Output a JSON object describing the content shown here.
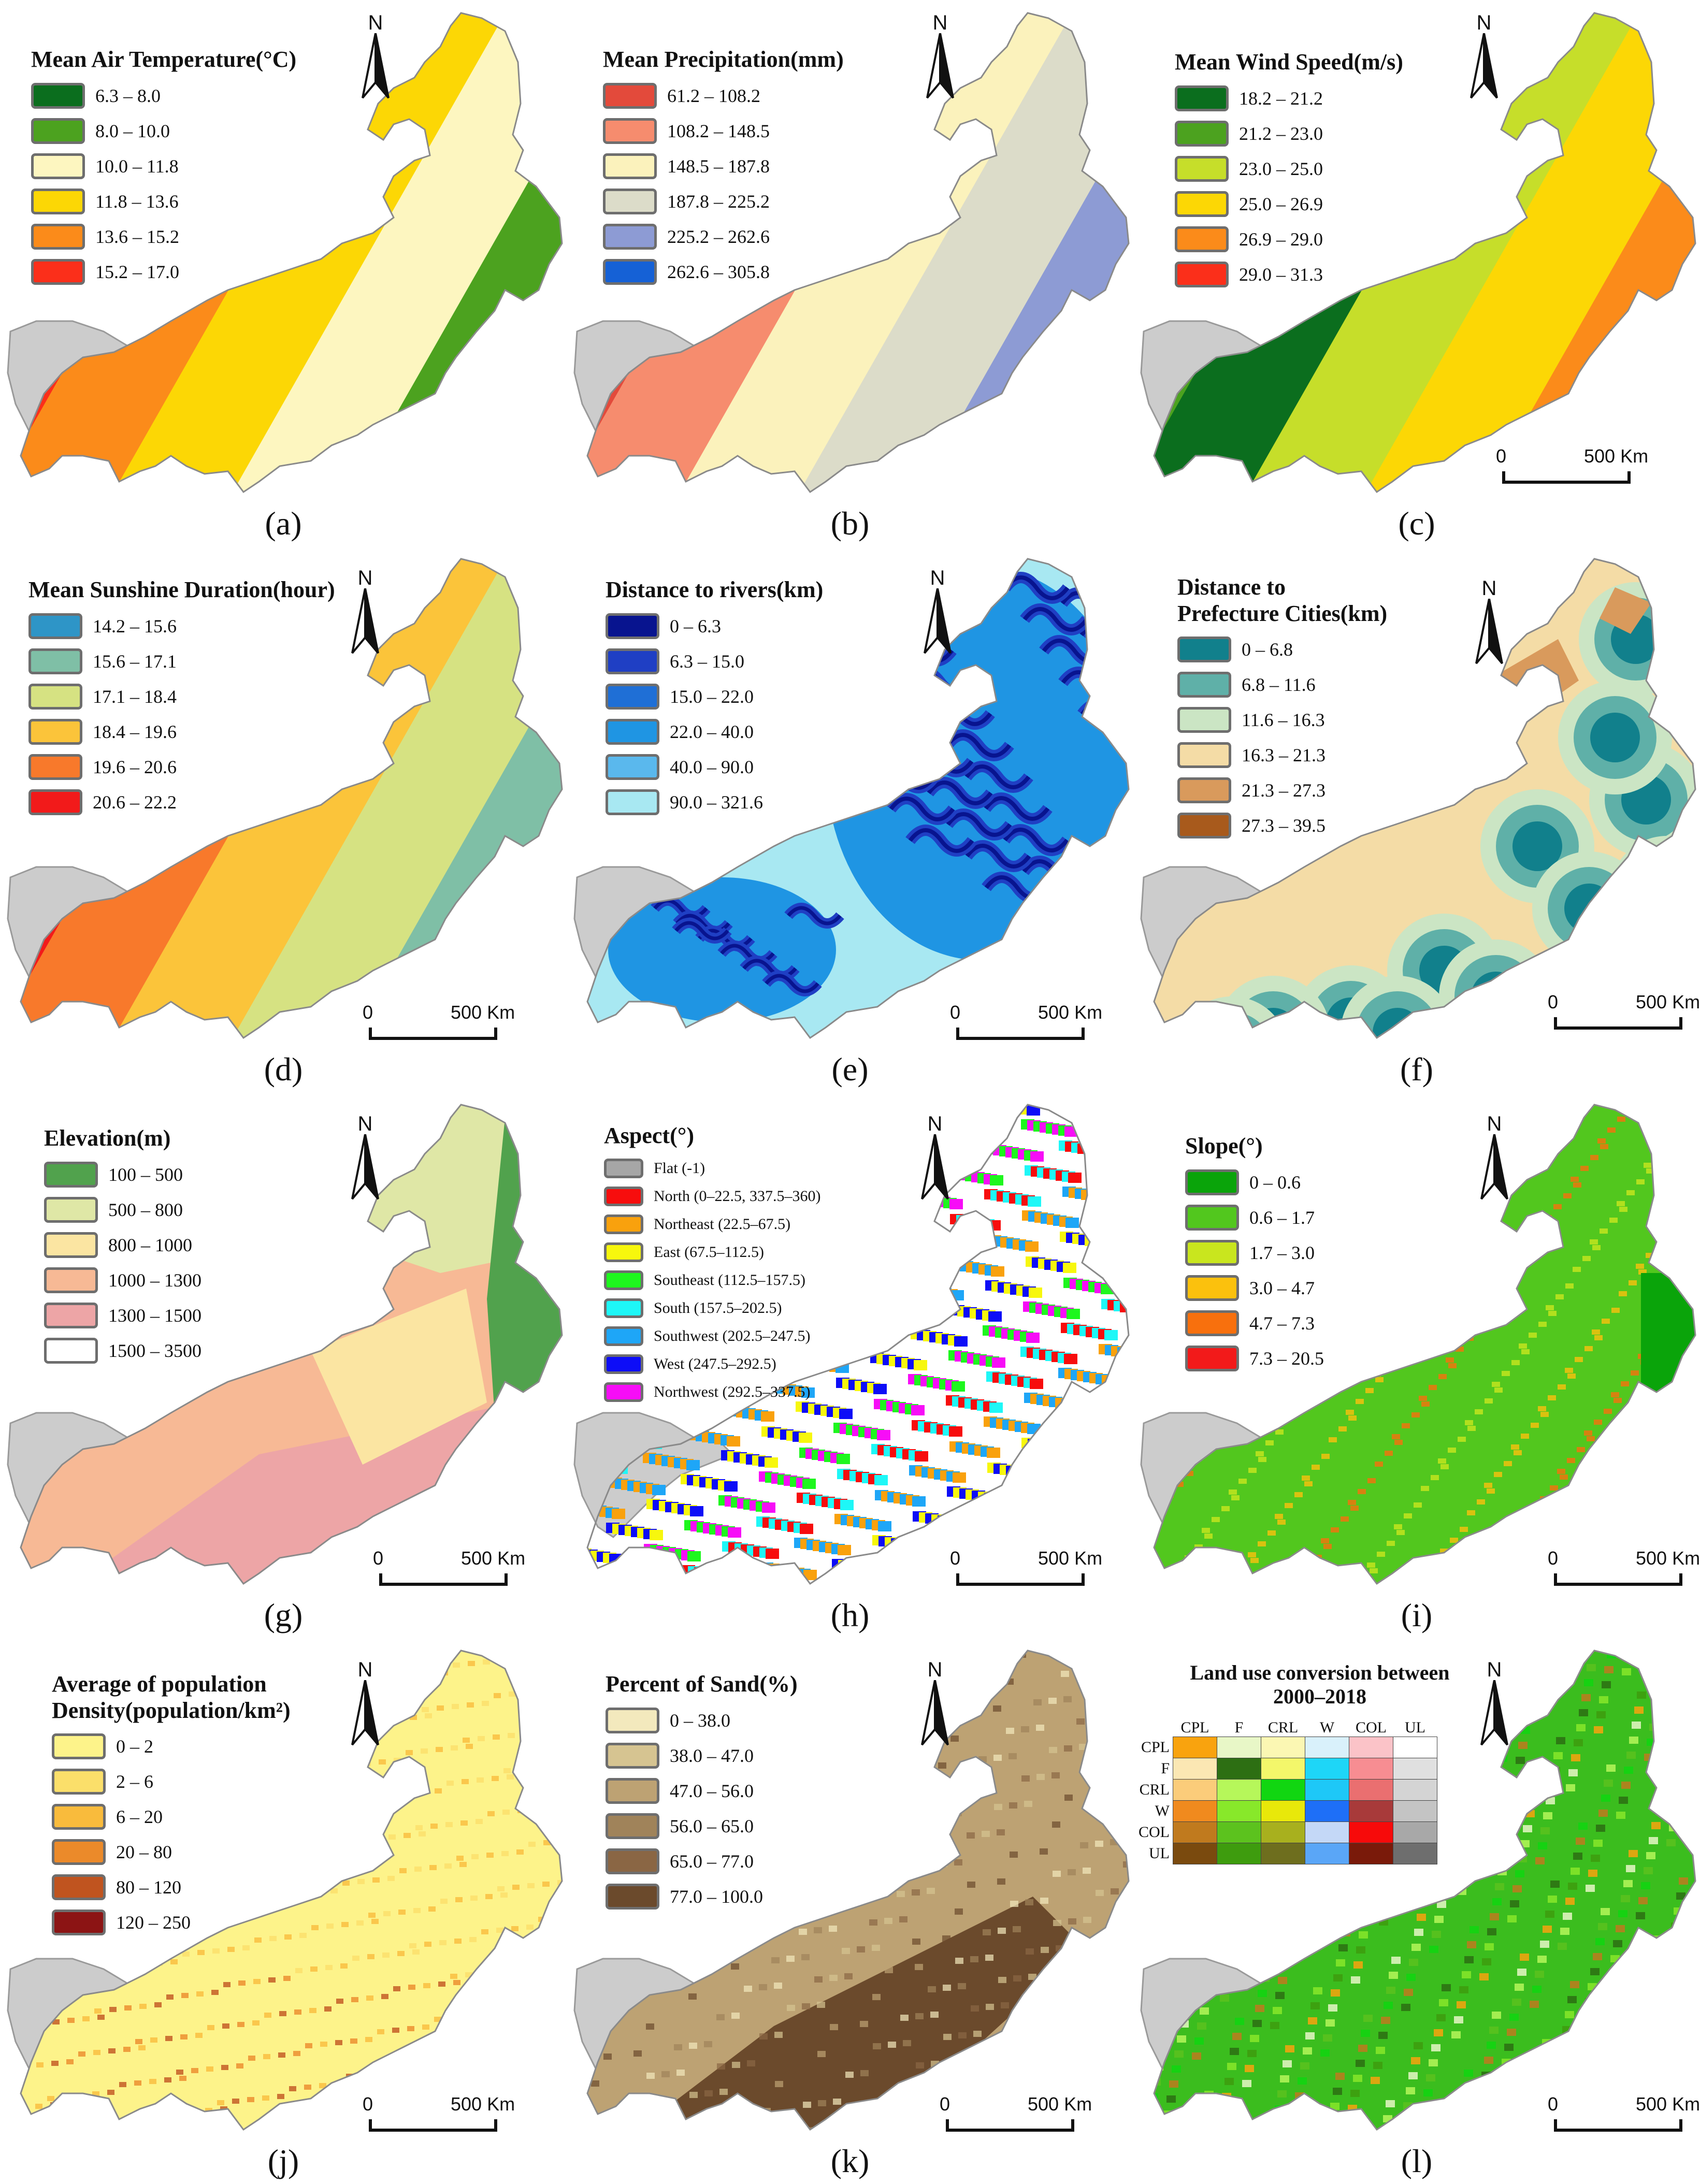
{
  "north_label": "N",
  "scale": {
    "zero": "0",
    "end": "500 Km"
  },
  "panels": [
    {
      "id": "a",
      "label": "(a)",
      "title": [
        "Mean Air Temperature(°C)"
      ],
      "legend": [
        {
          "label": "6.3 – 8.0",
          "color": "#0b6e1e"
        },
        {
          "label": "8.0 – 10.0",
          "color": "#4ca21f"
        },
        {
          "label": "10.0 – 11.8",
          "color": "#fdf6c0"
        },
        {
          "label": "11.8 – 13.6",
          "color": "#fcd705"
        },
        {
          "label": "13.6 – 15.2",
          "color": "#fb8b1a"
        },
        {
          "label": "15.2 – 17.0",
          "color": "#fb2f1a"
        }
      ],
      "scalebar": false
    },
    {
      "id": "b",
      "label": "(b)",
      "title": [
        "Mean Precipitation(mm)"
      ],
      "legend": [
        {
          "label": "61.2 – 108.2",
          "color": "#e34a3b"
        },
        {
          "label": "108.2 – 148.5",
          "color": "#f68c6e"
        },
        {
          "label": "148.5 – 187.8",
          "color": "#fbf2bc"
        },
        {
          "label": "187.8 – 225.2",
          "color": "#dcdcc9"
        },
        {
          "label": "225.2 – 262.6",
          "color": "#8d9bd4"
        },
        {
          "label": "262.6 – 305.8",
          "color": "#1561d6"
        }
      ],
      "scalebar": false
    },
    {
      "id": "c",
      "label": "(c)",
      "title": [
        "Mean Wind Speed(m/s)"
      ],
      "legend": [
        {
          "label": "18.2 – 21.2",
          "color": "#0b6e1e"
        },
        {
          "label": "21.2 – 23.0",
          "color": "#4ca21f"
        },
        {
          "label": "23.0 – 25.0",
          "color": "#c6de2a"
        },
        {
          "label": "25.0 – 26.9",
          "color": "#fcd705"
        },
        {
          "label": "26.9 – 29.0",
          "color": "#fb8b1a"
        },
        {
          "label": "29.0 – 31.3",
          "color": "#fb2f1a"
        }
      ],
      "scalebar": true
    },
    {
      "id": "d",
      "label": "(d)",
      "title": [
        "Mean Sunshine Duration(hour)"
      ],
      "legend": [
        {
          "label": "14.2 – 15.6",
          "color": "#2e95c7"
        },
        {
          "label": "15.6 – 17.1",
          "color": "#7fbfa6"
        },
        {
          "label": "17.1 – 18.4",
          "color": "#d6e282"
        },
        {
          "label": "18.4 – 19.6",
          "color": "#fbc43a"
        },
        {
          "label": "19.6 – 20.6",
          "color": "#f8792b"
        },
        {
          "label": "20.6 – 22.2",
          "color": "#f21a1a"
        }
      ],
      "scalebar": true
    },
    {
      "id": "e",
      "label": "(e)",
      "title": [
        "Distance to rivers(km)"
      ],
      "legend": [
        {
          "label": "0 – 6.3",
          "color": "#08148f"
        },
        {
          "label": "6.3 – 15.0",
          "color": "#1f3fc4"
        },
        {
          "label": "15.0 – 22.0",
          "color": "#1f6fd6"
        },
        {
          "label": "22.0 – 40.0",
          "color": "#1f95e3"
        },
        {
          "label": "40.0 – 90.0",
          "color": "#5ab8ed"
        },
        {
          "label": "90.0 – 321.6",
          "color": "#a8e8f2"
        }
      ],
      "scalebar": true
    },
    {
      "id": "f",
      "label": "(f)",
      "title": [
        "Distance to",
        "Prefecture Cities(km)"
      ],
      "legend": [
        {
          "label": "0 – 6.8",
          "color": "#11808c"
        },
        {
          "label": "6.8 – 11.6",
          "color": "#5fb0a8"
        },
        {
          "label": "11.6 – 16.3",
          "color": "#cbe5c4"
        },
        {
          "label": "16.3 – 21.3",
          "color": "#f4dca6"
        },
        {
          "label": "21.3 – 27.3",
          "color": "#d99a5c"
        },
        {
          "label": "27.3 – 39.5",
          "color": "#a85a1c"
        }
      ],
      "scalebar": true
    },
    {
      "id": "g",
      "label": "(g)",
      "title": [
        "Elevation(m)"
      ],
      "legend": [
        {
          "label": "100 – 500",
          "color": "#51a24d"
        },
        {
          "label": "500 – 800",
          "color": "#dfe7a6"
        },
        {
          "label": "800 – 1000",
          "color": "#fbe5a2"
        },
        {
          "label": "1000 – 1300",
          "color": "#f7b995"
        },
        {
          "label": "1300 – 1500",
          "color": "#eda5a6"
        },
        {
          "label": "1500 – 3500",
          "color": "#ffffff"
        }
      ],
      "scalebar": true
    },
    {
      "id": "h",
      "label": "(h)",
      "title": [
        "Aspect(°)"
      ],
      "legend": [
        {
          "label": "Flat (-1)",
          "color": "#a6a6a6"
        },
        {
          "label": "North (0–22.5, 337.5–360)",
          "color": "#f70d0d"
        },
        {
          "label": "Northeast (22.5–67.5)",
          "color": "#f9a10d"
        },
        {
          "label": "East (67.5–112.5)",
          "color": "#f7f70d"
        },
        {
          "label": "Southeast (112.5–157.5)",
          "color": "#1ef71e"
        },
        {
          "label": "South (157.5–202.5)",
          "color": "#1ef7f7"
        },
        {
          "label": "Southwest (202.5–247.5)",
          "color": "#1ea6f7"
        },
        {
          "label": "West (247.5–292.5)",
          "color": "#0d0df7"
        },
        {
          "label": "Northwest (292.5–337.5)",
          "color": "#f70df7"
        }
      ],
      "scalebar": true
    },
    {
      "id": "i",
      "label": "(i)",
      "title": [
        "Slope(°)"
      ],
      "legend": [
        {
          "label": "0 – 0.6",
          "color": "#0aa40a"
        },
        {
          "label": "0.6 – 1.7",
          "color": "#52c71e"
        },
        {
          "label": "1.7 – 3.0",
          "color": "#c9e61e"
        },
        {
          "label": "3.0 – 4.7",
          "color": "#fbc10d"
        },
        {
          "label": "4.7 – 7.3",
          "color": "#f8700d"
        },
        {
          "label": "7.3 – 20.5",
          "color": "#f21a1a"
        }
      ],
      "scalebar": true
    },
    {
      "id": "j",
      "label": "(j)",
      "title": [
        "Average of population",
        "Density(population/km²)"
      ],
      "legend": [
        {
          "label": "0 – 2",
          "color": "#fdf38a"
        },
        {
          "label": "2 – 6",
          "color": "#fbdf6a"
        },
        {
          "label": "6 – 20",
          "color": "#f9bb3c"
        },
        {
          "label": "20 – 80",
          "color": "#eb8a2a"
        },
        {
          "label": "80 – 120",
          "color": "#c0541f"
        },
        {
          "label": "120 – 250",
          "color": "#8c1414"
        }
      ],
      "scalebar": true
    },
    {
      "id": "k",
      "label": "(k)",
      "title": [
        "Percent of Sand(%)"
      ],
      "legend": [
        {
          "label": "0 – 38.0",
          "color": "#f3e9bd"
        },
        {
          "label": "38.0 – 47.0",
          "color": "#d6c491"
        },
        {
          "label": "47.0 – 56.0",
          "color": "#bda273"
        },
        {
          "label": "56.0 – 65.0",
          "color": "#a0835a"
        },
        {
          "label": "65.0 – 77.0",
          "color": "#8a6644"
        },
        {
          "label": "77.0 – 100.0",
          "color": "#6b4a2c"
        }
      ],
      "scalebar": true
    },
    {
      "id": "l",
      "label": "(l)",
      "title": [
        "Land use conversion between",
        "2000–2018"
      ],
      "legend": [],
      "scalebar": true
    }
  ],
  "matrix": {
    "columns": [
      "CPL",
      "F",
      "CRL",
      "W",
      "COL",
      "UL"
    ],
    "rows": [
      {
        "label": "CPL",
        "colors": [
          "#f9a30e",
          "#e8f7c7",
          "#fbf7b3",
          "#d9f1fb",
          "#fbc3c8",
          "#ffffff"
        ]
      },
      {
        "label": "F",
        "colors": [
          "#fbe7b3",
          "#2d6f13",
          "#f3f76a",
          "#1ed6f7",
          "#f78d92",
          "#e0e0e0"
        ]
      },
      {
        "label": "CRL",
        "colors": [
          "#fbcc7a",
          "#b6f75a",
          "#11d611",
          "#1ec8f7",
          "#ea6f70",
          "#d4d4d4"
        ]
      },
      {
        "label": "W",
        "colors": [
          "#f08a1e",
          "#88e82a",
          "#e8e80a",
          "#1e6ff7",
          "#a83a3a",
          "#c4c4c4"
        ]
      },
      {
        "label": "COL",
        "colors": [
          "#c07a1e",
          "#5cc21e",
          "#a8b01e",
          "#c4d8f7",
          "#f70a0a",
          "#a8a8a8"
        ]
      },
      {
        "label": "UL",
        "colors": [
          "#7a4a0e",
          "#3e9c0e",
          "#6e6e1e",
          "#5aa6f7",
          "#7a1a0a",
          "#6e6e6e"
        ]
      }
    ]
  }
}
